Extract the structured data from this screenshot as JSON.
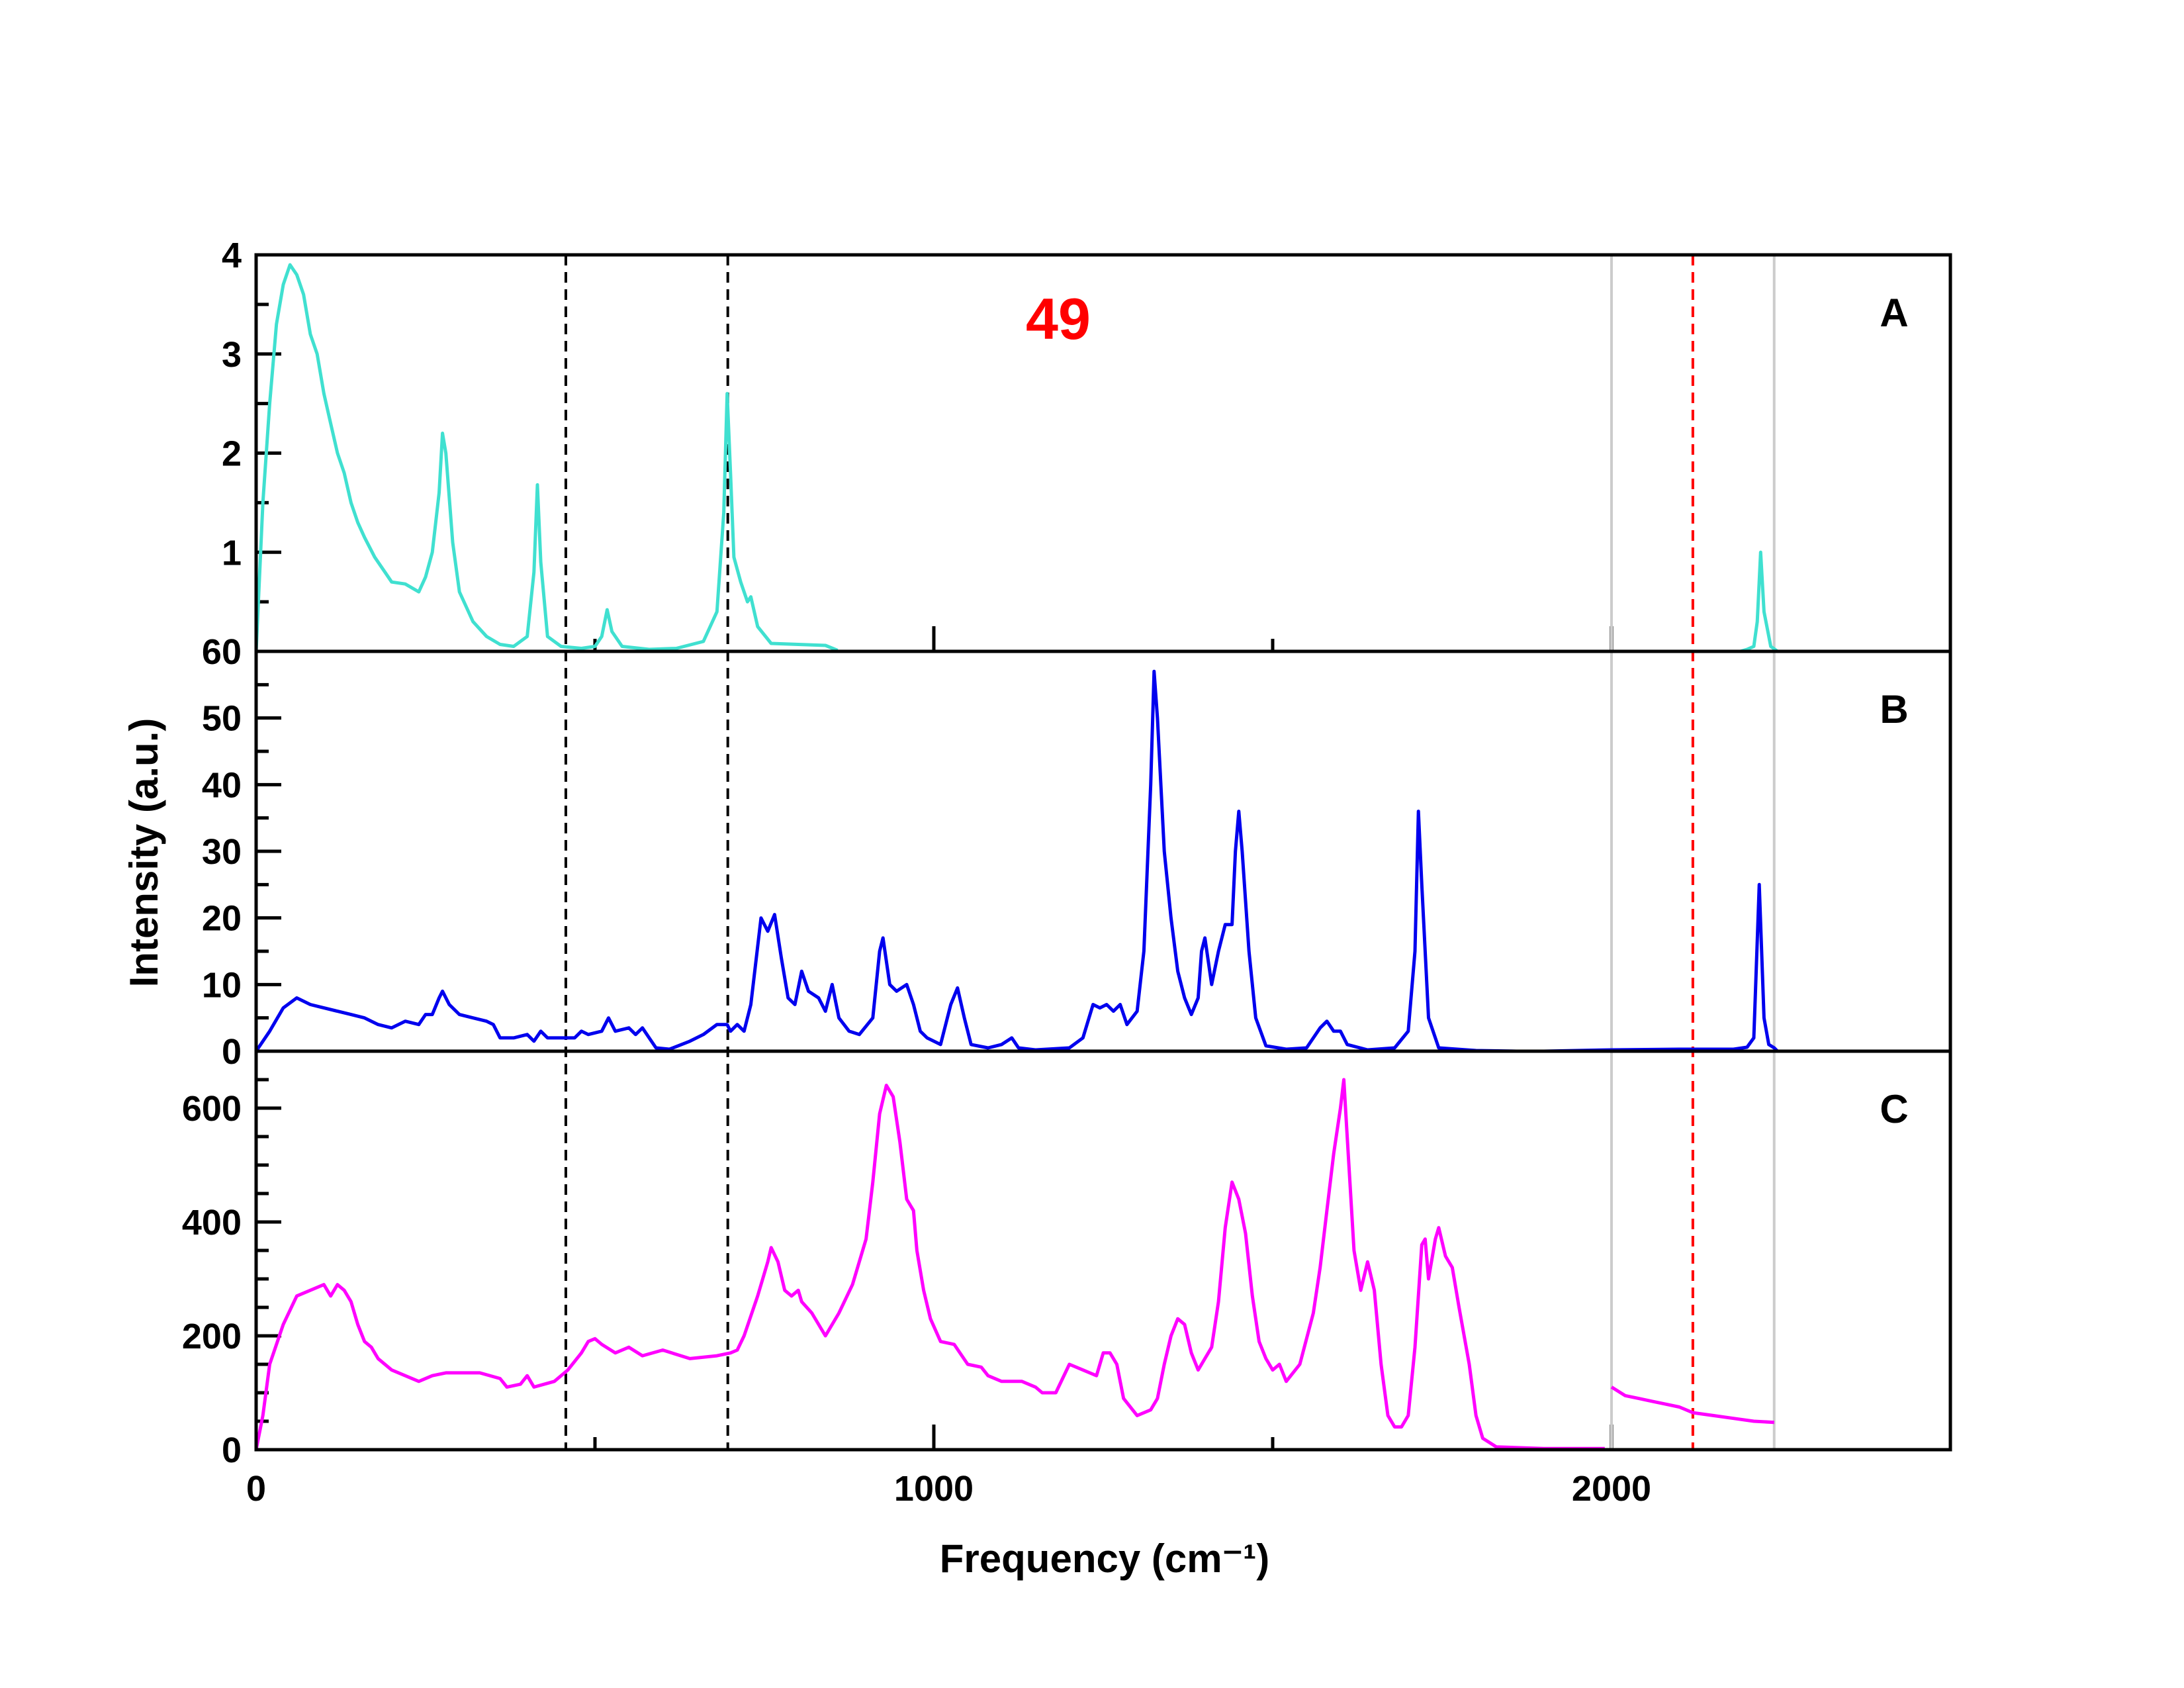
{
  "chart_data": {
    "type": "line",
    "annotation": "49",
    "annotation_color": "#ff0000",
    "xlabel": "Frequency (cm⁻¹)",
    "ylabel": "Intensity (a.u.)",
    "xlim": [
      0,
      2500
    ],
    "xticks": [
      0,
      1000,
      2000
    ],
    "xminor": [
      500,
      1500,
      2500
    ],
    "reference_lines": [
      {
        "x": 457,
        "color": "#000000",
        "dashed": true
      },
      {
        "x": 696,
        "color": "#000000",
        "dashed": true
      },
      {
        "x": 2000,
        "color": "#cccccc",
        "dashed": false
      },
      {
        "x": 2120,
        "color": "#ff0000",
        "dashed": true
      },
      {
        "x": 2240,
        "color": "#cccccc",
        "dashed": false
      }
    ],
    "panels": [
      {
        "label": "A",
        "color": "#40e0d0",
        "ylim": [
          0,
          4
        ],
        "yticks": [
          1,
          2,
          3,
          4
        ],
        "yminor": [
          0.5,
          1.5,
          2.5,
          3.5
        ],
        "x": [
          0,
          10,
          20,
          30,
          40,
          50,
          60,
          70,
          80,
          90,
          100,
          110,
          120,
          130,
          140,
          150,
          160,
          175,
          190,
          200,
          220,
          240,
          250,
          260,
          270,
          275,
          280,
          290,
          300,
          320,
          340,
          360,
          380,
          400,
          410,
          415,
          420,
          430,
          450,
          480,
          500,
          510,
          518,
          525,
          540,
          580,
          620,
          660,
          680,
          690,
          695,
          700,
          705,
          715,
          725,
          730,
          740,
          760,
          800,
          840,
          858,
          null,
          2190,
          2200,
          2210,
          2215,
          2220,
          2225,
          2235,
          2245
        ],
        "values": [
          0,
          1.5,
          2.5,
          3.3,
          3.7,
          3.9,
          3.8,
          3.6,
          3.2,
          3.0,
          2.6,
          2.3,
          2.0,
          1.8,
          1.5,
          1.3,
          1.15,
          0.95,
          0.8,
          0.7,
          0.68,
          0.6,
          0.75,
          1.0,
          1.6,
          2.2,
          2.0,
          1.1,
          0.6,
          0.3,
          0.15,
          0.07,
          0.05,
          0.15,
          0.8,
          1.68,
          0.9,
          0.15,
          0.05,
          0.03,
          0.05,
          0.15,
          0.42,
          0.2,
          0.05,
          0.02,
          0.03,
          0.1,
          0.4,
          1.4,
          2.6,
          1.8,
          0.95,
          0.7,
          0.5,
          0.55,
          0.25,
          0.08,
          0.07,
          0.06,
          0.01,
          null,
          0,
          0.02,
          0.05,
          0.3,
          1.0,
          0.4,
          0.05,
          0
        ]
      },
      {
        "label": "B",
        "color": "#0000ee",
        "ylim": [
          0,
          60
        ],
        "yticks": [
          0,
          10,
          20,
          30,
          40,
          50,
          60
        ],
        "yminor": [
          5,
          15,
          25,
          35,
          45,
          55
        ],
        "x": [
          0,
          20,
          40,
          60,
          80,
          100,
          120,
          140,
          160,
          180,
          200,
          220,
          240,
          250,
          260,
          270,
          275,
          285,
          300,
          320,
          340,
          350,
          360,
          380,
          400,
          410,
          420,
          430,
          450,
          470,
          480,
          490,
          510,
          520,
          530,
          550,
          560,
          570,
          580,
          590,
          610,
          640,
          660,
          680,
          695,
          700,
          710,
          720,
          730,
          745,
          755,
          765,
          775,
          785,
          795,
          805,
          815,
          830,
          840,
          850,
          860,
          875,
          890,
          910,
          920,
          925,
          935,
          945,
          960,
          970,
          980,
          990,
          1000,
          1010,
          1025,
          1035,
          1045,
          1055,
          1080,
          1100,
          1115,
          1125,
          1150,
          1200,
          1220,
          1235,
          1245,
          1255,
          1265,
          1275,
          1285,
          1300,
          1310,
          1320,
          1325,
          1330,
          1340,
          1350,
          1360,
          1370,
          1380,
          1390,
          1395,
          1400,
          1410,
          1420,
          1430,
          1440,
          1445,
          1450,
          1455,
          1465,
          1475,
          1490,
          1520,
          1550,
          1570,
          1580,
          1590,
          1600,
          1610,
          1640,
          1680,
          1700,
          1710,
          1715,
          1720,
          1730,
          1745,
          1800,
          1860,
          1900,
          2000,
          2100,
          2180,
          2200,
          2210,
          2218,
          2225,
          2232,
          2240,
          2245
        ],
        "values": [
          0,
          3,
          6.5,
          8,
          7,
          6.5,
          6,
          5.5,
          5,
          4,
          3.5,
          4.5,
          4,
          5.5,
          5.5,
          8,
          9,
          7,
          5.5,
          5,
          4.5,
          4,
          2,
          2,
          2.5,
          1.5,
          3,
          2,
          2,
          2,
          3,
          2.5,
          3,
          5,
          3,
          3.5,
          2.5,
          3.5,
          2,
          0.5,
          0.3,
          1.5,
          2.5,
          4,
          4,
          3,
          4,
          3,
          7,
          20,
          18,
          20.5,
          14,
          8,
          7,
          12,
          9,
          8,
          6,
          10,
          5,
          3,
          2.5,
          5,
          15,
          17,
          10,
          9,
          10,
          7,
          3,
          2,
          1.5,
          1,
          7,
          9.5,
          5,
          1,
          0.5,
          1,
          2,
          0.5,
          0.2,
          0.5,
          2,
          7,
          6.5,
          7,
          6,
          7,
          4,
          6,
          15,
          40,
          57,
          50,
          30,
          20,
          12,
          8,
          5.5,
          8,
          15,
          17,
          10,
          15,
          19,
          19,
          30,
          36,
          30,
          15,
          5,
          0.8,
          0.3,
          0.5,
          3.5,
          4.5,
          3,
          3,
          1,
          0.2,
          0.5,
          3,
          15,
          36,
          25,
          5,
          0.5,
          0.1,
          0,
          0,
          0.2,
          0.3,
          0.3,
          0.6,
          2,
          25,
          5,
          1,
          0.5,
          0
        ]
      },
      {
        "label": "C",
        "color": "#ff00ff",
        "ylim": [
          0,
          700
        ],
        "yticks": [
          0,
          200,
          400,
          600
        ],
        "yminor": [
          50,
          100,
          150,
          250,
          300,
          350,
          450,
          500,
          550,
          650
        ],
        "x": [
          0,
          10,
          20,
          40,
          60,
          80,
          100,
          110,
          120,
          130,
          140,
          150,
          160,
          170,
          180,
          200,
          220,
          240,
          260,
          280,
          300,
          330,
          360,
          370,
          390,
          400,
          410,
          440,
          460,
          480,
          490,
          500,
          510,
          530,
          550,
          570,
          600,
          640,
          680,
          700,
          710,
          720,
          740,
          755,
          760,
          770,
          780,
          790,
          800,
          805,
          820,
          840,
          860,
          880,
          900,
          910,
          920,
          930,
          940,
          950,
          960,
          970,
          975,
          985,
          995,
          1010,
          1030,
          1050,
          1070,
          1080,
          1100,
          1130,
          1150,
          1160,
          1180,
          1200,
          1220,
          1240,
          1250,
          1260,
          1270,
          1280,
          1300,
          1320,
          1330,
          1340,
          1350,
          1360,
          1370,
          1380,
          1390,
          1400,
          1410,
          1420,
          1430,
          1440,
          1450,
          1460,
          1470,
          1480,
          1490,
          1500,
          1510,
          1520,
          1540,
          1560,
          1570,
          1580,
          1590,
          1600,
          1605,
          1610,
          1620,
          1630,
          1640,
          1650,
          1660,
          1670,
          1680,
          1690,
          1700,
          1710,
          1720,
          1725,
          1730,
          1740,
          1745,
          1755,
          1765,
          1775,
          1790,
          1800,
          1810,
          1830,
          1900,
          1990,
          null,
          2000,
          2020,
          2040,
          2060,
          2080,
          2100,
          2120,
          2150,
          2180,
          2210,
          2240
        ],
        "values": [
          0,
          60,
          150,
          220,
          270,
          280,
          290,
          270,
          290,
          280,
          260,
          220,
          190,
          180,
          160,
          140,
          130,
          120,
          130,
          135,
          135,
          135,
          125,
          110,
          115,
          130,
          110,
          120,
          140,
          170,
          190,
          195,
          185,
          170,
          180,
          165,
          175,
          160,
          165,
          170,
          175,
          200,
          270,
          330,
          355,
          330,
          280,
          270,
          280,
          260,
          240,
          200,
          240,
          290,
          370,
          470,
          590,
          640,
          620,
          540,
          440,
          420,
          350,
          280,
          230,
          190,
          185,
          150,
          145,
          130,
          120,
          120,
          110,
          100,
          100,
          150,
          140,
          130,
          170,
          170,
          150,
          90,
          60,
          70,
          90,
          150,
          200,
          230,
          220,
          170,
          140,
          160,
          180,
          260,
          390,
          470,
          440,
          380,
          270,
          190,
          160,
          140,
          150,
          120,
          150,
          240,
          320,
          420,
          520,
          600,
          650,
          550,
          350,
          280,
          330,
          280,
          150,
          60,
          40,
          40,
          60,
          180,
          360,
          370,
          300,
          370,
          390,
          340,
          320,
          250,
          150,
          60,
          20,
          5,
          2,
          2,
          null,
          110,
          95,
          90,
          85,
          80,
          75,
          65,
          60,
          55,
          50,
          48
        ]
      }
    ]
  }
}
